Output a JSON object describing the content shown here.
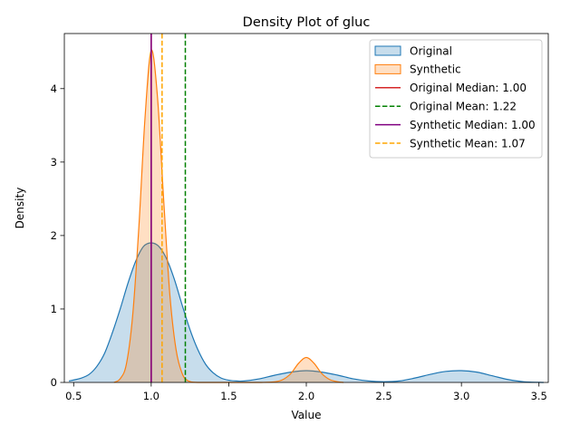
{
  "chart_data": {
    "type": "area",
    "title": "Density Plot of gluc",
    "xlabel": "Value",
    "ylabel": "Density",
    "xlim": [
      0.44,
      3.56
    ],
    "ylim": [
      0,
      4.75
    ],
    "xticks": [
      0.5,
      1.0,
      1.5,
      2.0,
      2.5,
      3.0,
      3.5
    ],
    "xtick_labels": [
      "0.5",
      "1.0",
      "1.5",
      "2.0",
      "2.5",
      "3.0",
      "3.5"
    ],
    "yticks": [
      0,
      1,
      2,
      3,
      4
    ],
    "ytick_labels": [
      "0",
      "1",
      "2",
      "3",
      "4"
    ],
    "grid": false,
    "legend_position": "top-right",
    "series": [
      {
        "name": "Original",
        "kind": "density",
        "color": "#1f77b4",
        "fill_opacity": 0.25,
        "x": [
          0.47,
          0.55,
          0.6,
          0.65,
          0.7,
          0.75,
          0.8,
          0.85,
          0.9,
          0.95,
          1.0,
          1.05,
          1.1,
          1.15,
          1.2,
          1.25,
          1.3,
          1.35,
          1.4,
          1.45,
          1.5,
          1.55,
          1.6,
          1.7,
          1.8,
          1.9,
          2.0,
          2.1,
          2.2,
          2.3,
          2.4,
          2.5,
          2.6,
          2.7,
          2.8,
          2.9,
          3.0,
          3.1,
          3.2,
          3.3,
          3.4,
          3.53
        ],
        "y": [
          0.02,
          0.06,
          0.11,
          0.22,
          0.4,
          0.68,
          1.0,
          1.35,
          1.65,
          1.85,
          1.9,
          1.85,
          1.68,
          1.4,
          1.05,
          0.72,
          0.45,
          0.25,
          0.13,
          0.06,
          0.03,
          0.02,
          0.02,
          0.05,
          0.1,
          0.14,
          0.16,
          0.14,
          0.1,
          0.05,
          0.02,
          0.01,
          0.02,
          0.06,
          0.11,
          0.15,
          0.16,
          0.14,
          0.09,
          0.04,
          0.01,
          0.0
        ]
      },
      {
        "name": "Synthetic",
        "kind": "density",
        "color": "#ff7f0e",
        "fill_opacity": 0.25,
        "x": [
          0.76,
          0.8,
          0.84,
          0.88,
          0.92,
          0.96,
          1.0,
          1.04,
          1.08,
          1.12,
          1.16,
          1.2,
          1.24,
          1.3,
          1.4,
          1.5,
          1.6,
          1.7,
          1.8,
          1.85,
          1.9,
          1.95,
          2.0,
          2.05,
          2.1,
          2.15,
          2.2,
          2.24
        ],
        "y": [
          0.0,
          0.05,
          0.25,
          0.9,
          2.1,
          3.6,
          4.52,
          3.9,
          2.5,
          1.2,
          0.45,
          0.12,
          0.02,
          0.0,
          0.0,
          0.0,
          0.0,
          0.0,
          0.01,
          0.04,
          0.12,
          0.26,
          0.34,
          0.26,
          0.12,
          0.04,
          0.01,
          0.0
        ]
      }
    ],
    "vlines": [
      {
        "name": "Original Median: 1.00",
        "x": 1.0,
        "color": "#d62728",
        "dashed": false
      },
      {
        "name": "Original Mean: 1.22",
        "x": 1.22,
        "color": "#008000",
        "dashed": true
      },
      {
        "name": "Synthetic Median: 1.00",
        "x": 1.0,
        "color": "#800080",
        "dashed": false
      },
      {
        "name": "Synthetic Mean: 1.07",
        "x": 1.07,
        "color": "#ffa500",
        "dashed": true
      }
    ]
  }
}
